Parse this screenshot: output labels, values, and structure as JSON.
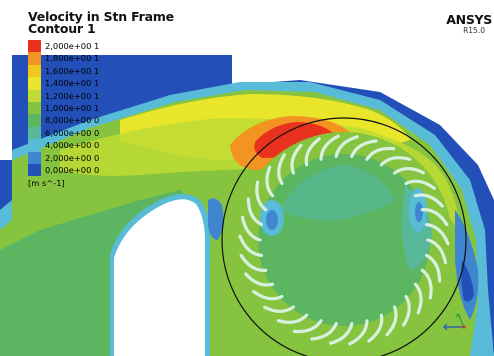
{
  "plot": {
    "title": "Velocity in Stn Frame",
    "subtitle": "Contour 1",
    "units": "[m s^-1]",
    "brand": "ANSYS",
    "version": "R15.0"
  },
  "legend": [
    {
      "label": "2,000e+00 1",
      "color": "#e8321e"
    },
    {
      "label": "1,800e+00 1",
      "color": "#f39321"
    },
    {
      "label": "1,600e+00 1",
      "color": "#f2c81d"
    },
    {
      "label": "1,400e+00 1",
      "color": "#e9e52a"
    },
    {
      "label": "1,200e+00 1",
      "color": "#bedc34"
    },
    {
      "label": "1,000e+00 1",
      "color": "#86c43f"
    },
    {
      "label": "8,000e+00 0",
      "color": "#5bb561"
    },
    {
      "label": "6,000e+00 0",
      "color": "#57b89a"
    },
    {
      "label": "4,000e+00 0",
      "color": "#58bcd8"
    },
    {
      "label": "2,000e+00 0",
      "color": "#3f86d0"
    },
    {
      "label": "0,000e+00 0",
      "color": "#2350b8"
    }
  ],
  "contour_colors": {
    "dark_blue": "#2350b8",
    "mid_blue": "#3f86d0",
    "light_blue": "#58bcd8",
    "teal": "#57b89a",
    "green": "#5bb561",
    "light_green": "#86c43f",
    "yellow_green": "#bedc34",
    "yellow": "#e9e52a",
    "orange": "#f39321",
    "red": "#e8321e"
  }
}
